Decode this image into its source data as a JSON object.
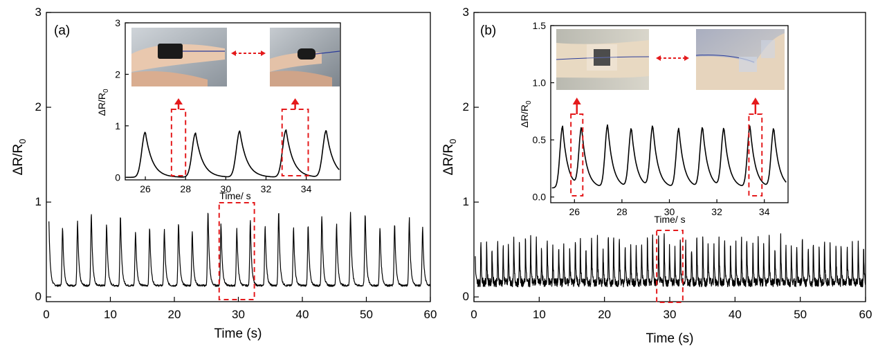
{
  "chart_data": [
    {
      "type": "line",
      "panel_label": "(a)",
      "xlabel": "Time (s)",
      "ylabel": "ΔR/R",
      "ylabel_sub": "0",
      "xlim": [
        0,
        60
      ],
      "ylim": [
        -0.05,
        3
      ],
      "xticks": [
        0,
        10,
        20,
        30,
        40,
        50,
        60
      ],
      "yticks": [
        0,
        1,
        2,
        3
      ],
      "series": [
        {
          "baseline": 0.12,
          "peak_mean": 0.8,
          "period_s": 2.25,
          "start_s": 0.4,
          "end_s": 60
        }
      ],
      "highlight": {
        "x": [
          27,
          32.5
        ]
      },
      "inset": {
        "xlabel": "Time/ s",
        "ylabel": "ΔR/R",
        "ylabel_sub": "0",
        "xlim": [
          25,
          35.7
        ],
        "ylim": [
          -0.05,
          3
        ],
        "xticks": [
          26,
          28,
          30,
          32,
          34
        ],
        "yticks": [
          0,
          1,
          2,
          3
        ],
        "peaks": [
          {
            "x": 26.0,
            "y": 0.88
          },
          {
            "x": 28.5,
            "y": 0.86
          },
          {
            "x": 30.7,
            "y": 0.9
          },
          {
            "x": 33.0,
            "y": 0.92
          },
          {
            "x": 35.0,
            "y": 0.91
          }
        ],
        "photos": [
          "finger-straight-photo",
          "finger-bent-photo"
        ]
      }
    },
    {
      "type": "line",
      "panel_label": "(b)",
      "xlabel": "Time (s)",
      "ylabel": "ΔR/R",
      "ylabel_sub": "0",
      "xlim": [
        0,
        60
      ],
      "ylim": [
        -0.05,
        3
      ],
      "xticks": [
        0,
        10,
        20,
        30,
        40,
        50,
        60
      ],
      "yticks": [
        0,
        1,
        2,
        3
      ],
      "series": [
        {
          "baseline": 0.15,
          "peak_mean": 0.6,
          "period_s": 0.85,
          "start_s": 0.2,
          "end_s": 60
        }
      ],
      "highlight": {
        "x": [
          28,
          32
        ]
      },
      "inset": {
        "xlabel": "Time/ s",
        "ylabel": "ΔR/R",
        "ylabel_sub": "0",
        "xlim": [
          25,
          35
        ],
        "ylim": [
          -0.05,
          1.5
        ],
        "xticks": [
          26,
          28,
          30,
          32,
          34
        ],
        "yticks": [
          0.0,
          0.5,
          1.0,
          1.5
        ],
        "ytick_labels": [
          "0.0",
          "0.5",
          "1.0",
          "1.5"
        ],
        "peaks": [
          {
            "x": 25.5,
            "y": 0.62
          },
          {
            "x": 26.3,
            "y": 0.6
          },
          {
            "x": 27.4,
            "y": 0.63
          },
          {
            "x": 28.4,
            "y": 0.6
          },
          {
            "x": 29.3,
            "y": 0.62
          },
          {
            "x": 30.4,
            "y": 0.6
          },
          {
            "x": 31.4,
            "y": 0.61
          },
          {
            "x": 32.3,
            "y": 0.6
          },
          {
            "x": 33.4,
            "y": 0.62
          },
          {
            "x": 34.4,
            "y": 0.6
          }
        ],
        "photos": [
          "elbow-straight-photo",
          "elbow-bent-photo"
        ]
      }
    }
  ]
}
